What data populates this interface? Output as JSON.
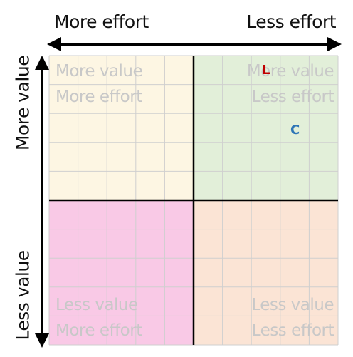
{
  "axes": {
    "x_left_label": "More effort",
    "x_right_label": "Less effort",
    "y_top_label": "More value",
    "y_bottom_label": "Less value"
  },
  "quadrants": {
    "top_left": {
      "line1": "More value",
      "line2": "More effort",
      "color": "#fdf6e3"
    },
    "top_right": {
      "line1": "More value",
      "line2": "Less effort",
      "color": "#e2efd9"
    },
    "bottom_left": {
      "line1": "Less value",
      "line2": "More effort",
      "color": "#f9c9e6"
    },
    "bottom_right": {
      "line1": "Less value",
      "line2": "Less effort",
      "color": "#fbe4d5"
    }
  },
  "markers": [
    {
      "label": "L",
      "color": "#c00000"
    },
    {
      "label": "C",
      "color": "#2e75b6"
    }
  ],
  "colors": {
    "grid": "#cfcfcf",
    "divider": "#000000",
    "arrow": "#000000"
  }
}
